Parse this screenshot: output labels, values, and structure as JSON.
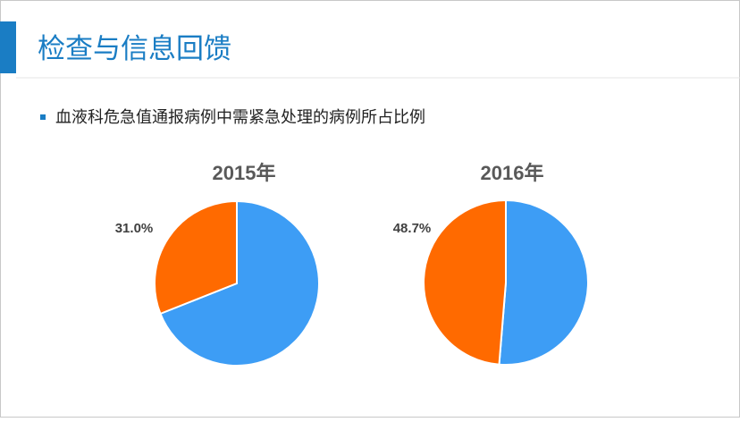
{
  "slide": {
    "title": "检查与信息回馈",
    "bullet": "血液科危急值通报病例中需紧急处理的病例所占比例"
  },
  "chart_data": [
    {
      "type": "pie",
      "title": "2015年",
      "values": [
        69.0,
        31.0
      ],
      "value_labels": [
        null,
        "31.0%"
      ],
      "colors": [
        "#3d9df5",
        "#ff6a00"
      ]
    },
    {
      "type": "pie",
      "title": "2016年",
      "values": [
        51.3,
        48.7
      ],
      "value_labels": [
        null,
        "48.7%"
      ],
      "colors": [
        "#3d9df5",
        "#ff6a00"
      ]
    }
  ]
}
